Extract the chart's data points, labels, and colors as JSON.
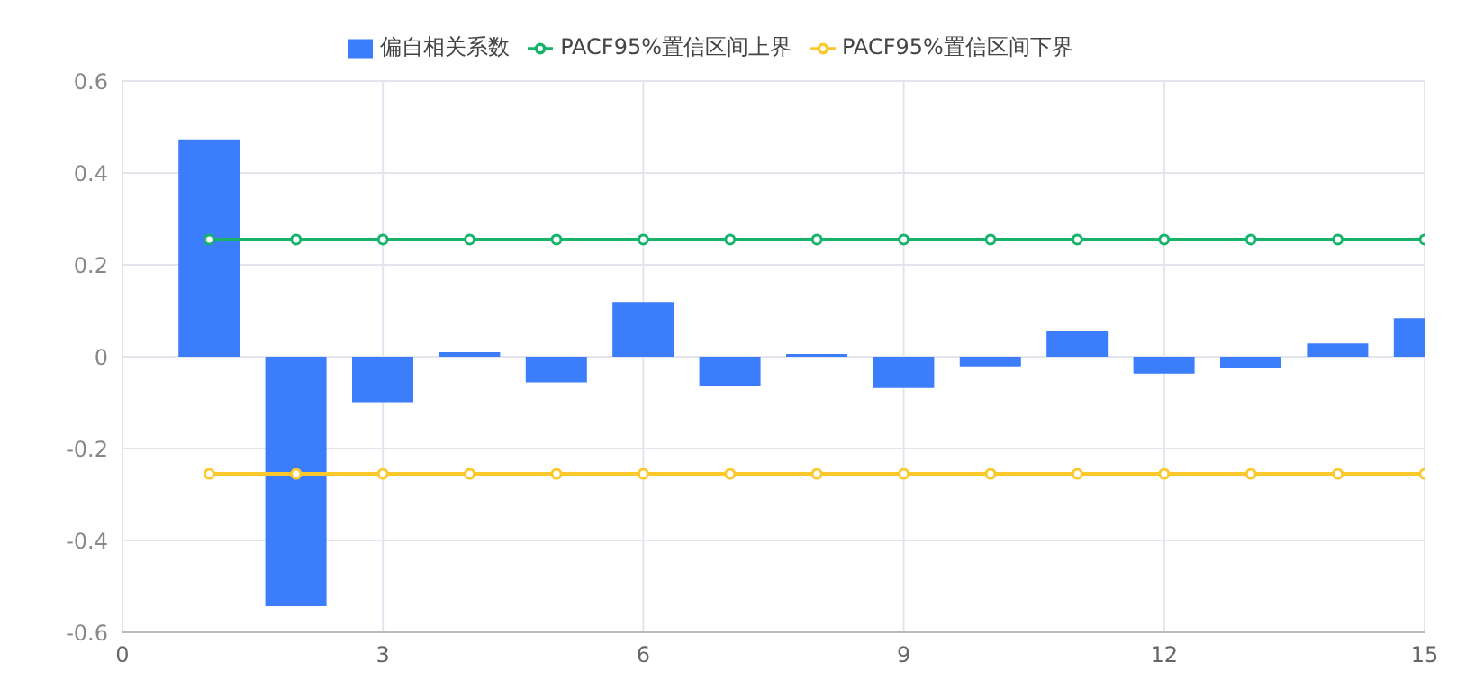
{
  "chart_data": {
    "type": "bar",
    "x": [
      1,
      2,
      3,
      4,
      5,
      6,
      7,
      8,
      9,
      10,
      11,
      12,
      13,
      14,
      15
    ],
    "series": [
      {
        "name": "偏自相关系数",
        "color": "#3b7dfb",
        "values": [
          0.473,
          -0.543,
          -0.099,
          0.01,
          -0.056,
          0.119,
          -0.064,
          0.006,
          -0.068,
          -0.021,
          0.056,
          -0.037,
          -0.025,
          0.029,
          0.084
        ]
      },
      {
        "name": "PACF95%置信区间上界",
        "type": "line",
        "color": "#16b36a",
        "values": [
          0.255,
          0.255,
          0.255,
          0.255,
          0.255,
          0.255,
          0.255,
          0.255,
          0.255,
          0.255,
          0.255,
          0.255,
          0.255,
          0.255,
          0.255
        ]
      },
      {
        "name": "PACF95%置信区间下界",
        "type": "line",
        "color": "#fbc92b",
        "values": [
          -0.255,
          -0.255,
          -0.255,
          -0.255,
          -0.255,
          -0.255,
          -0.255,
          -0.255,
          -0.255,
          -0.255,
          -0.255,
          -0.255,
          -0.255,
          -0.255,
          -0.255
        ]
      }
    ],
    "xlim": [
      0,
      15
    ],
    "xticks": [
      0,
      3,
      6,
      9,
      12,
      15
    ],
    "ylim": [
      -0.6,
      0.6
    ],
    "yticks": [
      -0.6,
      -0.4,
      -0.2,
      0,
      0.2,
      0.4,
      0.6
    ],
    "grid": true,
    "legend": "top",
    "marker": "circle",
    "line_style": "solid"
  }
}
